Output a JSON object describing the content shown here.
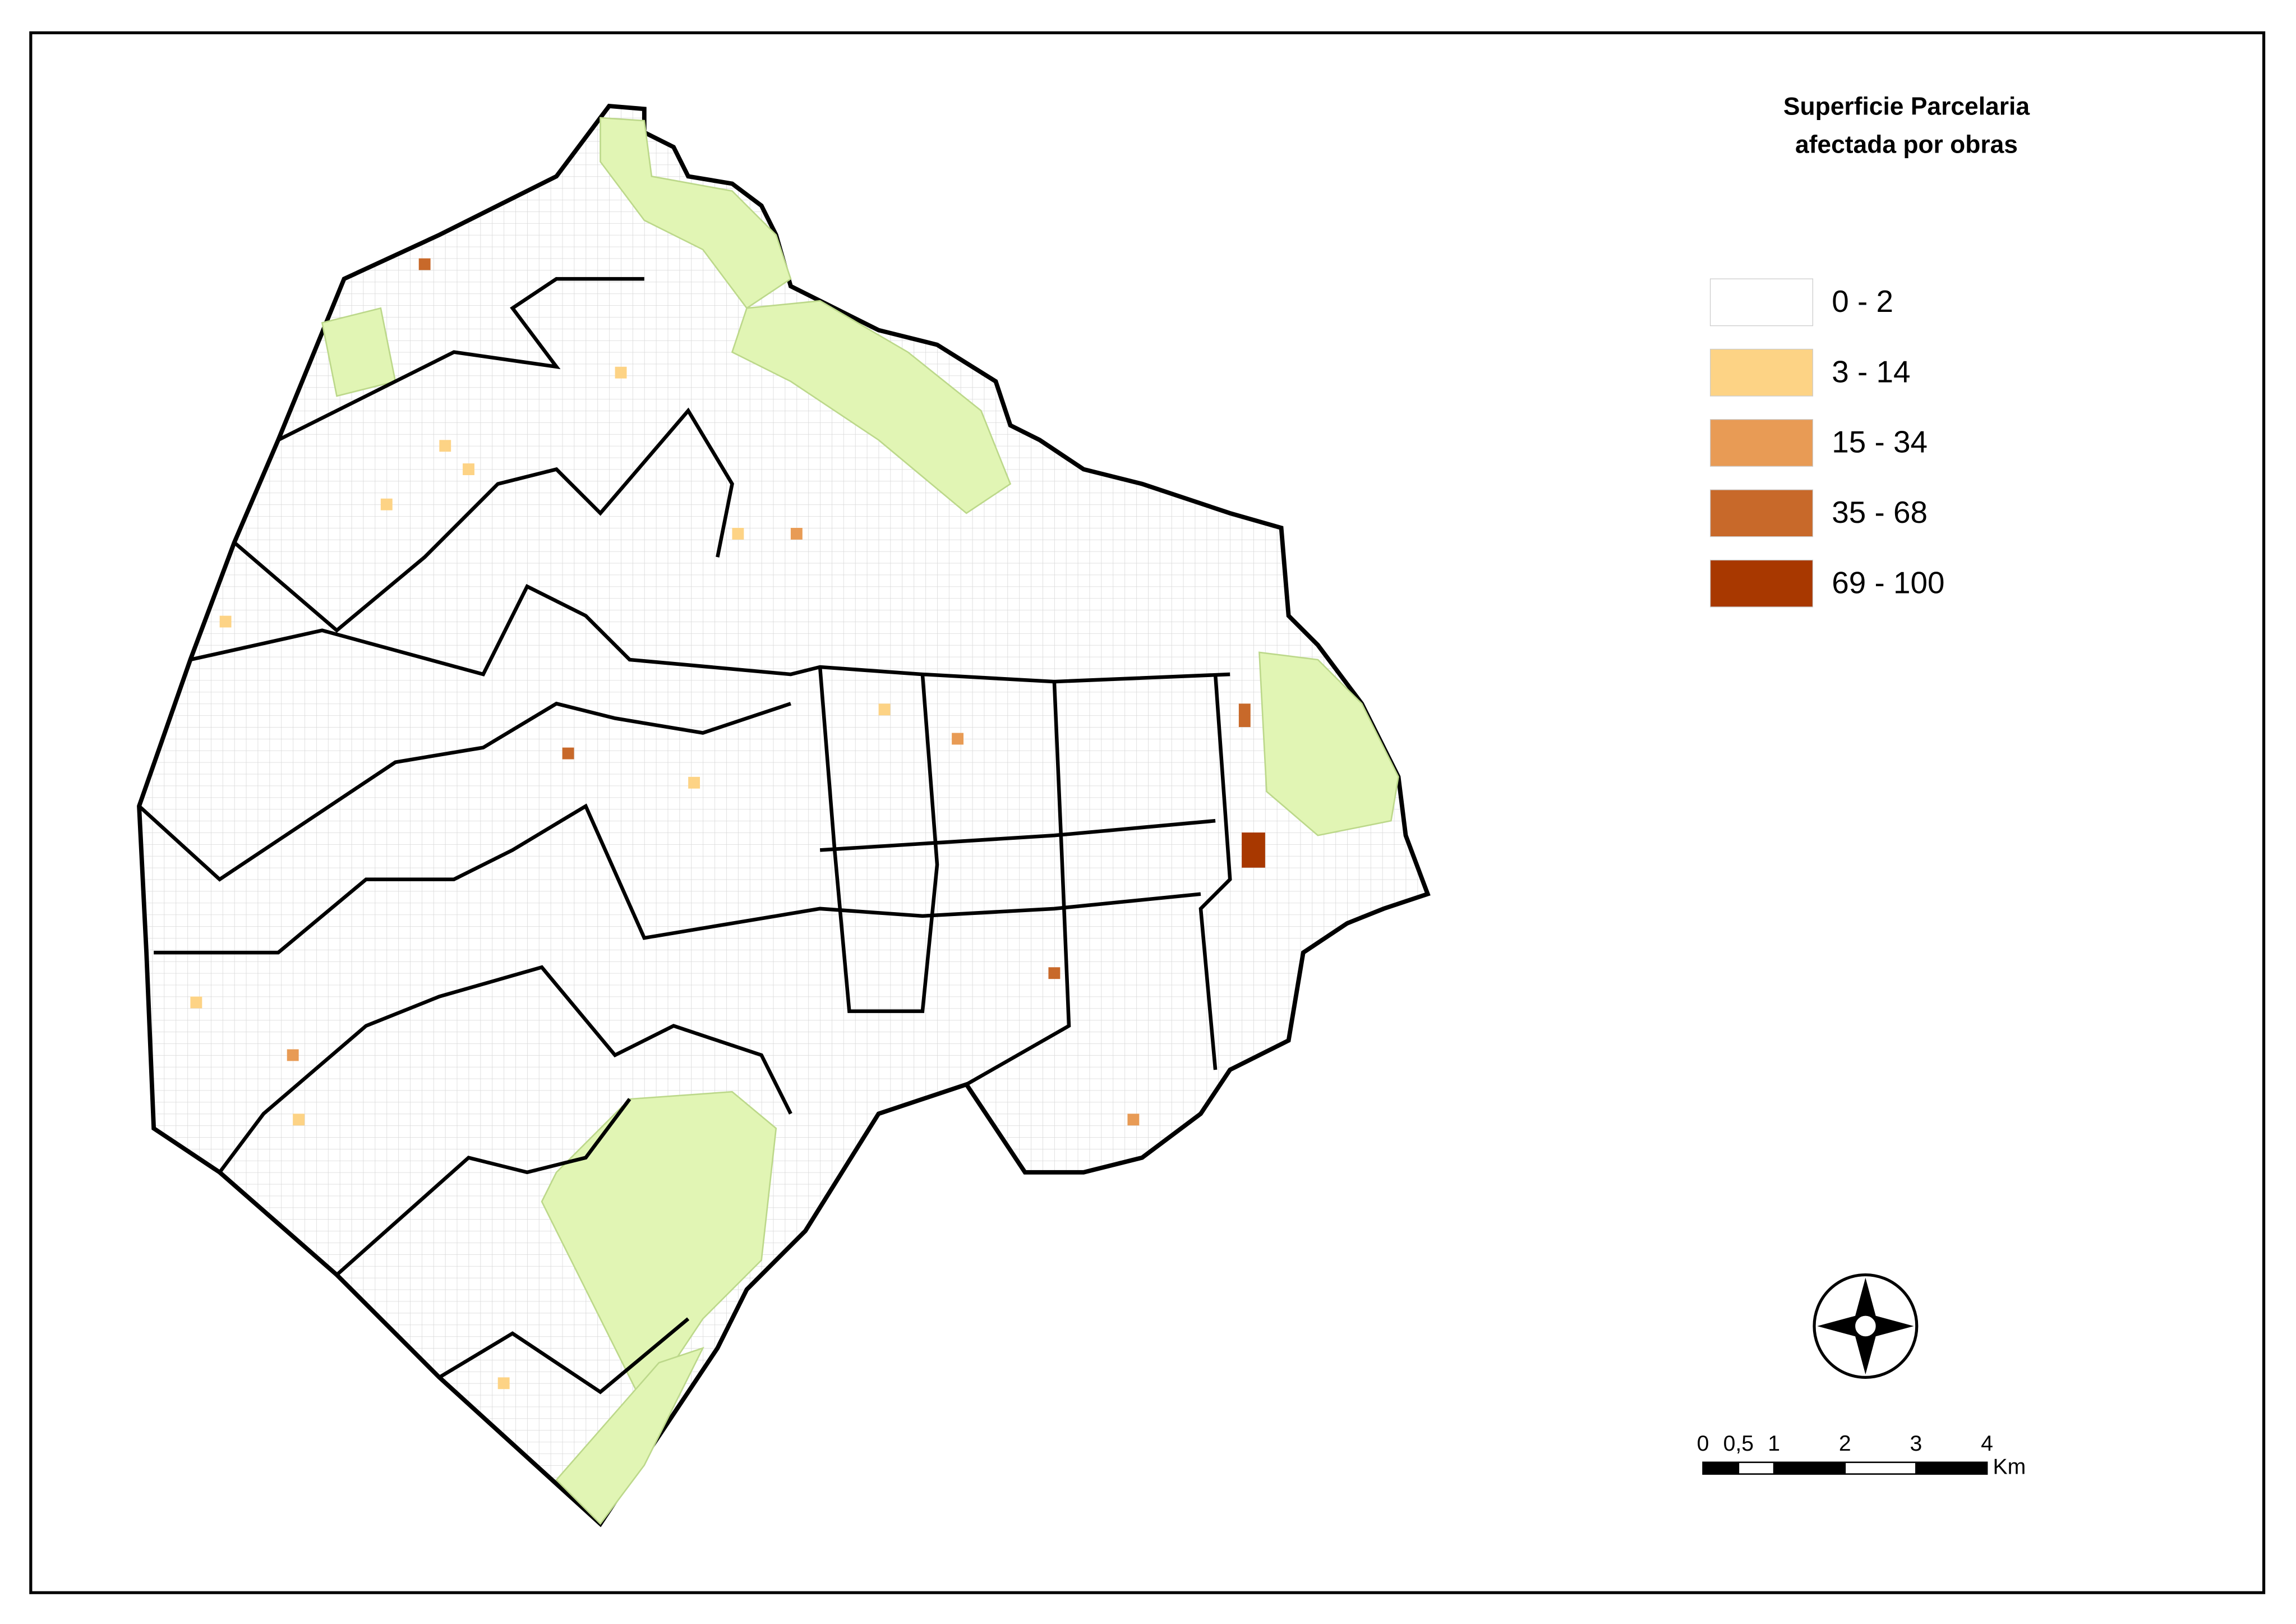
{
  "map": {
    "title_lines": [
      "Superficie Parcelaria",
      "afectada por obras"
    ],
    "legend": [
      {
        "label": "0 - 2",
        "color": "#ffffff"
      },
      {
        "label": "3 - 14",
        "color": "#fdd385"
      },
      {
        "label": "15 - 34",
        "color": "#e89b55"
      },
      {
        "label": "35 - 68",
        "color": "#c8692a"
      },
      {
        "label": "69 - 100",
        "color": "#a83800"
      }
    ],
    "scale_bar": {
      "ticks": [
        0,
        {
          "value": 0.5,
          "label": "0,5"
        },
        1,
        2,
        3,
        4
      ],
      "unit": "Km"
    }
  }
}
